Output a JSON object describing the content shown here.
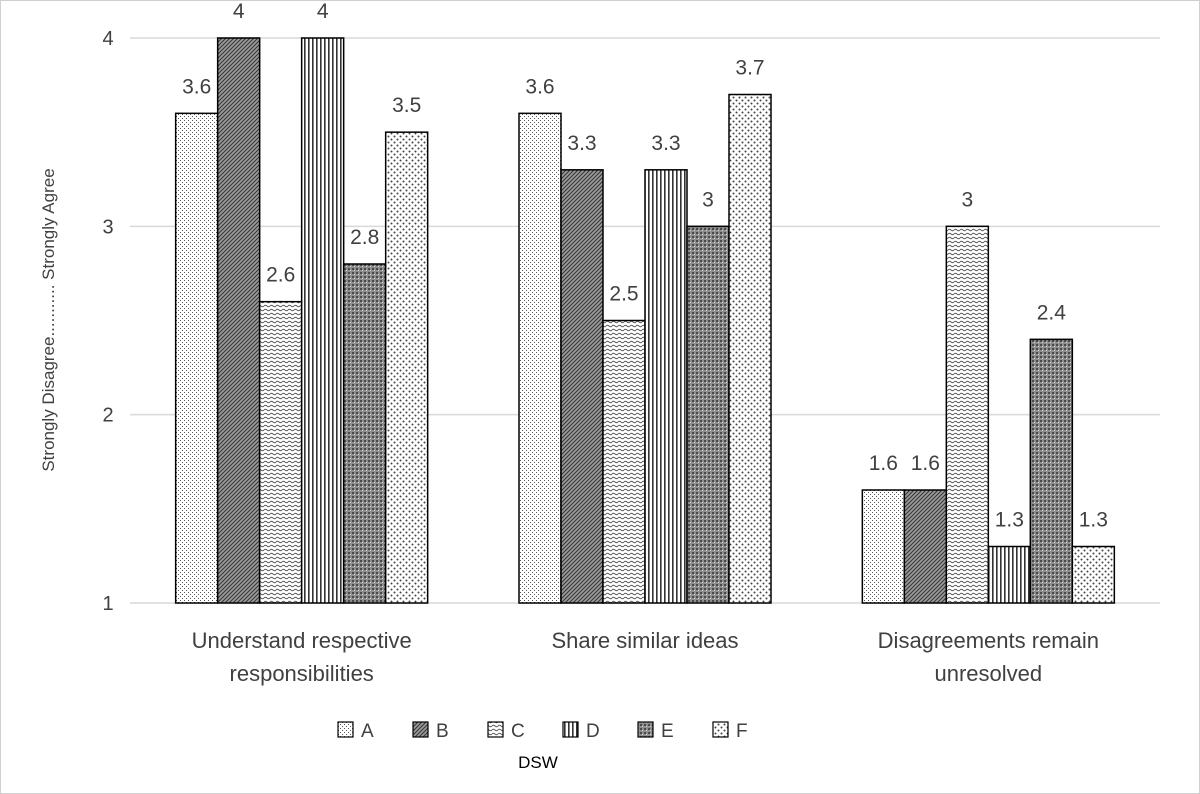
{
  "chart_data": {
    "type": "bar",
    "categories": [
      [
        "Understand respective",
        "responsibilities"
      ],
      [
        "Share similar ideas"
      ],
      [
        "Disagreements remain",
        "unresolved"
      ]
    ],
    "series": [
      {
        "name": "A",
        "values": [
          3.6,
          3.6,
          1.6
        ],
        "pattern": "dots-fine"
      },
      {
        "name": "B",
        "values": [
          4,
          3.3,
          1.6
        ],
        "pattern": "diag-dense"
      },
      {
        "name": "C",
        "values": [
          2.6,
          2.5,
          3
        ],
        "pattern": "horiz-wave"
      },
      {
        "name": "D",
        "values": [
          4,
          3.3,
          1.3
        ],
        "pattern": "vertical"
      },
      {
        "name": "E",
        "values": [
          2.8,
          3,
          2.4
        ],
        "pattern": "cross-dense"
      },
      {
        "name": "F",
        "values": [
          3.5,
          3.7,
          1.3
        ],
        "pattern": "dots-coarse"
      }
    ],
    "ylabel": "Strongly Disagree...........  Strongly Agree",
    "xlabel": "DSW",
    "ylim": [
      1,
      4
    ],
    "yticks": [
      1,
      2,
      3,
      4
    ],
    "grid": true,
    "legend": "bottom"
  }
}
